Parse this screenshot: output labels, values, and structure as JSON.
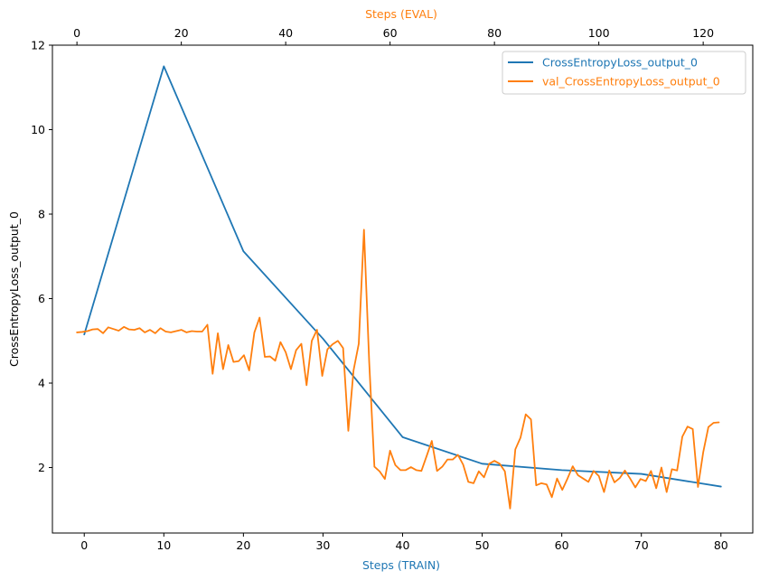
{
  "chart_data": {
    "type": "line",
    "xlabel_bottom": "Steps (TRAIN)",
    "xlabel_top": "Steps (EVAL)",
    "ylabel": "CrossEntropyLoss_output_0",
    "xlim_bottom": [
      -4,
      84
    ],
    "xlim_top": [
      -4.7,
      129.5
    ],
    "ylim": [
      0.45,
      12
    ],
    "xticks_bottom": [
      0,
      10,
      20,
      30,
      40,
      50,
      60,
      70,
      80
    ],
    "xticks_top": [
      0,
      20,
      40,
      60,
      80,
      100,
      120
    ],
    "yticks": [
      2,
      4,
      6,
      8,
      10,
      12
    ],
    "grid": false,
    "legend_position": "top-right",
    "colors": {
      "train": "#1f77b4",
      "eval": "#ff7f0e"
    },
    "series": [
      {
        "name": "CrossEntropyLoss_output_0",
        "axis": "bottom",
        "x": [
          0,
          10,
          20,
          30,
          40,
          50,
          60,
          70,
          80
        ],
        "y": [
          5.15,
          11.5,
          7.12,
          5.05,
          2.72,
          2.09,
          1.94,
          1.85,
          1.55
        ]
      },
      {
        "name": "val_CrossEntropyLoss_output_0",
        "axis": "top",
        "x": [
          0,
          1,
          2,
          3,
          4,
          5,
          6,
          7,
          8,
          9,
          10,
          11,
          12,
          13,
          14,
          15,
          16,
          17,
          18,
          19,
          20,
          21,
          22,
          23,
          24,
          25,
          26,
          27,
          28,
          29,
          30,
          31,
          32,
          33,
          34,
          35,
          36,
          37,
          38,
          39,
          40,
          41,
          42,
          43,
          44,
          45,
          46,
          47,
          48,
          49,
          50,
          51,
          52,
          53,
          54,
          55,
          56,
          57,
          58,
          59,
          60,
          61,
          62,
          63,
          64,
          65,
          66,
          67,
          68,
          69,
          70,
          71,
          72,
          73,
          74,
          75,
          76,
          77,
          78,
          79,
          80,
          81,
          82,
          83,
          84,
          85,
          86,
          87,
          88,
          89,
          90,
          91,
          92,
          93,
          94,
          95,
          96,
          97,
          98,
          99,
          100,
          101,
          102,
          103,
          104,
          105,
          106,
          107,
          108,
          109,
          110,
          111,
          112,
          113,
          114,
          115,
          116,
          117,
          118,
          119,
          120,
          121,
          122,
          123
        ],
        "y": [
          5.2,
          5.21,
          5.23,
          5.27,
          5.28,
          5.18,
          5.32,
          5.28,
          5.24,
          5.33,
          5.27,
          5.26,
          5.3,
          5.2,
          5.26,
          5.18,
          5.3,
          5.22,
          5.2,
          5.23,
          5.26,
          5.2,
          5.23,
          5.22,
          5.22,
          5.38,
          4.22,
          5.18,
          4.33,
          4.9,
          4.5,
          4.52,
          4.66,
          4.3,
          5.2,
          5.55,
          4.62,
          4.63,
          4.53,
          4.97,
          4.73,
          4.33,
          4.78,
          4.93,
          3.95,
          5.0,
          5.26,
          4.17,
          4.8,
          4.92,
          5.0,
          4.83,
          2.87,
          4.3,
          4.93,
          7.63,
          4.5,
          2.02,
          1.91,
          1.73,
          2.4,
          2.06,
          1.94,
          1.94,
          2.01,
          1.94,
          1.92,
          2.27,
          2.63,
          1.92,
          2.02,
          2.19,
          2.19,
          2.3,
          2.07,
          1.66,
          1.63,
          1.91,
          1.77,
          2.09,
          2.16,
          2.09,
          1.91,
          1.03,
          2.43,
          2.71,
          3.26,
          3.14,
          1.58,
          1.63,
          1.6,
          1.3,
          1.74,
          1.47,
          1.74,
          2.03,
          1.82,
          1.74,
          1.66,
          1.92,
          1.8,
          1.42,
          1.93,
          1.65,
          1.75,
          1.93,
          1.74,
          1.53,
          1.73,
          1.68,
          1.92,
          1.51,
          2.0,
          1.42,
          1.96,
          1.93,
          2.73,
          2.97,
          2.91,
          1.54,
          2.36,
          2.96,
          3.06,
          3.07
        ]
      }
    ]
  }
}
